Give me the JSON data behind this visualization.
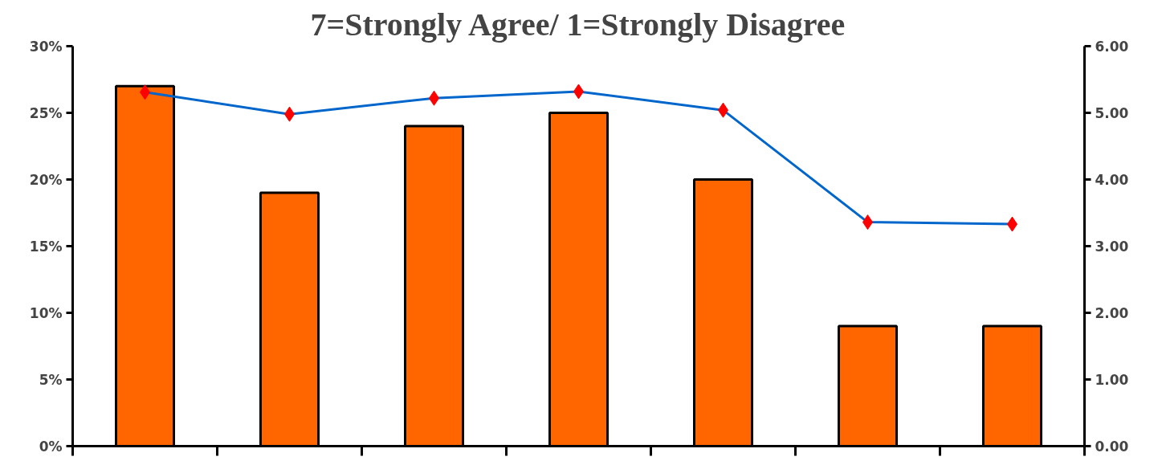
{
  "chart_data": {
    "type": "bar",
    "title": "7=Strongly Agree/ 1=Strongly Disagree",
    "categories": [
      null,
      null,
      null,
      null,
      null,
      null,
      null
    ],
    "series": [
      {
        "color": "#ff6600",
        "values": [
          27,
          19,
          24,
          25,
          20,
          9,
          9
        ]
      },
      {
        "type": "line",
        "color": "#0066cc",
        "axis": "y2",
        "marker": "diamond",
        "values": [
          5.31,
          4.98,
          5.22,
          5.32,
          5.04,
          3.36,
          3.33
        ]
      }
    ],
    "ylim": [
      0,
      30
    ],
    "yticks": [
      {
        "value": 0,
        "label": "0%"
      },
      {
        "value": 5,
        "label": "5%"
      },
      {
        "value": 10,
        "label": "10%"
      },
      {
        "value": 15,
        "label": "15%"
      },
      {
        "value": 20,
        "label": "20%"
      },
      {
        "value": 25,
        "label": "25%"
      },
      {
        "value": 30,
        "label": "30%"
      }
    ],
    "y2lim": [
      0,
      6
    ],
    "y2ticks": [
      {
        "value": 0,
        "label": "0.00"
      },
      {
        "value": 1,
        "label": "1.00"
      },
      {
        "value": 2,
        "label": "2.00"
      },
      {
        "value": 3,
        "label": "3.00"
      },
      {
        "value": 4,
        "label": "4.00"
      },
      {
        "value": 5,
        "label": "5.00"
      },
      {
        "value": 6,
        "label": "6.00"
      }
    ],
    "grid": false
  }
}
